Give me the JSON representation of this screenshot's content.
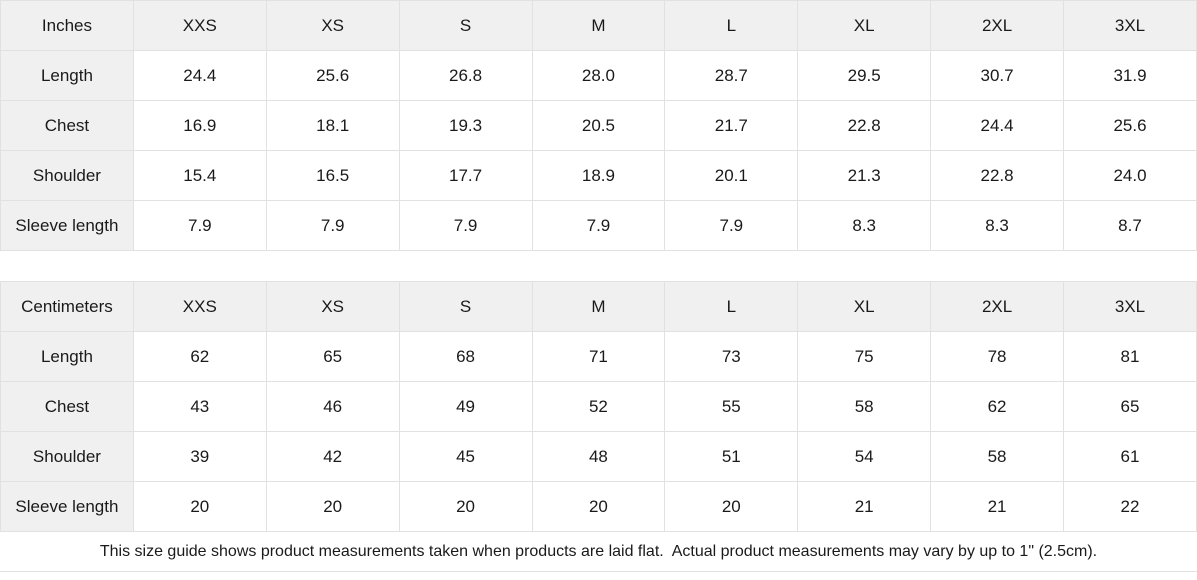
{
  "colors": {
    "header_background": "#f0f0f0",
    "border": "#e1e1e1",
    "text": "#1a1a1a",
    "background": "#ffffff"
  },
  "tables": [
    {
      "unit_label": "Inches",
      "sizes": [
        "XXS",
        "XS",
        "S",
        "M",
        "L",
        "XL",
        "2XL",
        "3XL"
      ],
      "rows": [
        {
          "label": "Length",
          "values": [
            "24.4",
            "25.6",
            "26.8",
            "28.0",
            "28.7",
            "29.5",
            "30.7",
            "31.9"
          ]
        },
        {
          "label": "Chest",
          "values": [
            "16.9",
            "18.1",
            "19.3",
            "20.5",
            "21.7",
            "22.8",
            "24.4",
            "25.6"
          ]
        },
        {
          "label": "Shoulder",
          "values": [
            "15.4",
            "16.5",
            "17.7",
            "18.9",
            "20.1",
            "21.3",
            "22.8",
            "24.0"
          ]
        },
        {
          "label": "Sleeve length",
          "values": [
            "7.9",
            "7.9",
            "7.9",
            "7.9",
            "7.9",
            "8.3",
            "8.3",
            "8.7"
          ]
        }
      ]
    },
    {
      "unit_label": "Centimeters",
      "sizes": [
        "XXS",
        "XS",
        "S",
        "M",
        "L",
        "XL",
        "2XL",
        "3XL"
      ],
      "rows": [
        {
          "label": "Length",
          "values": [
            "62",
            "65",
            "68",
            "71",
            "73",
            "75",
            "78",
            "81"
          ]
        },
        {
          "label": "Chest",
          "values": [
            "43",
            "46",
            "49",
            "52",
            "55",
            "58",
            "62",
            "65"
          ]
        },
        {
          "label": "Shoulder",
          "values": [
            "39",
            "42",
            "45",
            "48",
            "51",
            "54",
            "58",
            "61"
          ]
        },
        {
          "label": "Sleeve length",
          "values": [
            "20",
            "20",
            "20",
            "20",
            "20",
            "21",
            "21",
            "22"
          ]
        }
      ]
    }
  ],
  "footnote": "This size guide shows product measurements taken when products are laid flat.  Actual product measurements may vary by up to 1\" (2.5cm)."
}
